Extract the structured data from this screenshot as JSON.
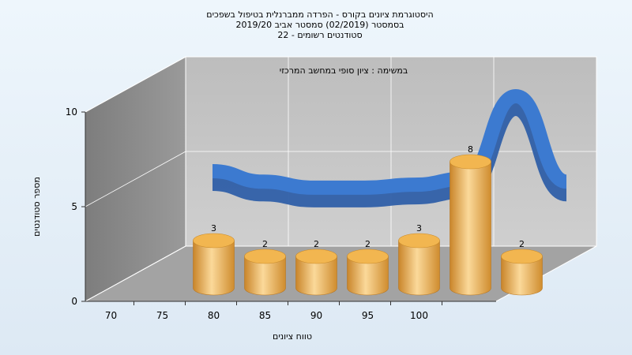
{
  "chart_data": {
    "type": "bar",
    "title_lines": [
      "היסטוגרמת ציונים בקורס - הפרדה ממברנלית בטיפול בשפכים",
      "בסמסטר  (02/2019)  סמסטר אביב 2019/20",
      "סטודנטים רשומים - 22"
    ],
    "subtitle": "במשימה : ציון סופי במחשב המרכזי",
    "xlabel": "טווח ציונים",
    "ylabel": "מספר סטודנטים",
    "x_ticks": [
      "70",
      "75",
      "80",
      "85",
      "90",
      "95",
      "100"
    ],
    "y_ticks": [
      "0",
      "5",
      "10"
    ],
    "ylim": [
      0,
      10
    ],
    "bins": [
      "70",
      "75",
      "80",
      "85",
      "90",
      "95",
      "100"
    ],
    "values": [
      3,
      2,
      2,
      2,
      3,
      8,
      2
    ],
    "data_labels": [
      "3",
      "2",
      "2",
      "2",
      "3",
      "8",
      "2"
    ],
    "curve": {
      "x": [
        70,
        75,
        80,
        85,
        90,
        95,
        100,
        105
      ],
      "y": [
        5.0,
        4.3,
        3.9,
        3.9,
        4.1,
        4.5,
        10.0,
        4.3
      ]
    },
    "grid": true,
    "colors": {
      "bar": "#e8a23c",
      "bar_highlight": "#fbd99a",
      "bar_top": "#f2b650",
      "curve": "#3c7ad0",
      "curve_dark": "#2f5fa8",
      "back_wall": "#c4c4c4",
      "side_wall": "#8c8c8c",
      "floor": "#9e9e9e"
    }
  }
}
